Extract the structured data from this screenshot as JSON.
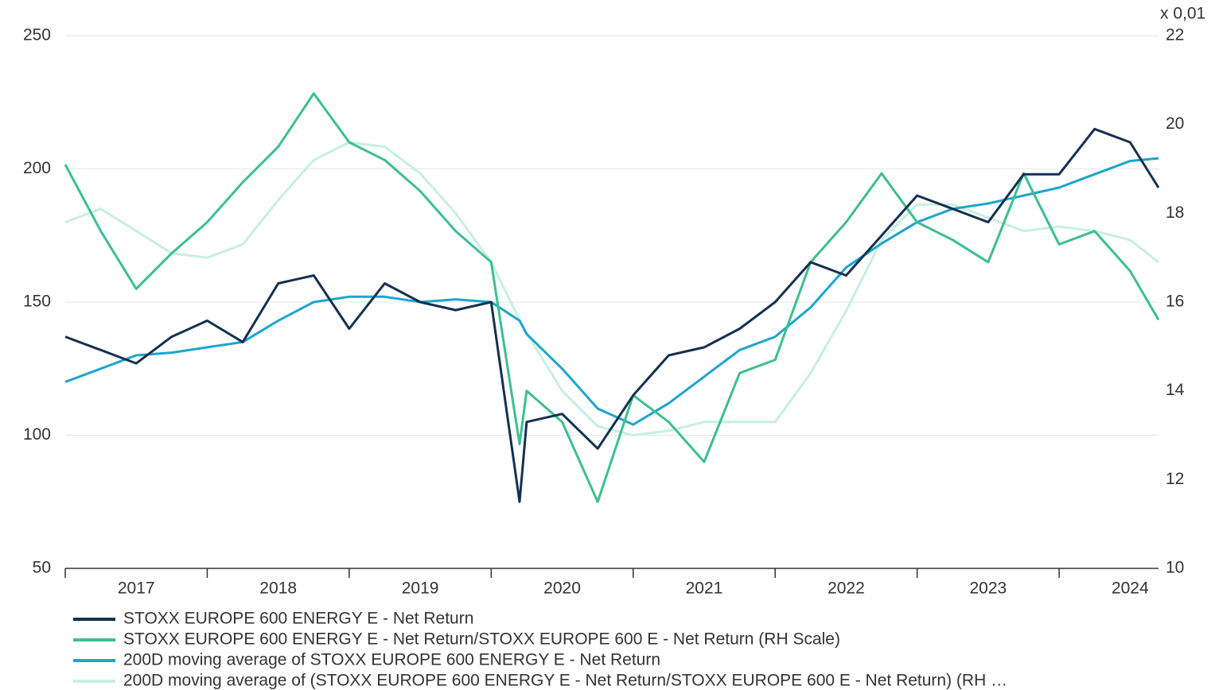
{
  "chart_data": {
    "type": "line",
    "right_axis_unit": "x 0,01",
    "x": [
      2017,
      2017.25,
      2017.5,
      2017.75,
      2018,
      2018.25,
      2018.5,
      2018.75,
      2019,
      2019.25,
      2019.5,
      2019.75,
      2020,
      2020.2,
      2020.25,
      2020.5,
      2020.75,
      2021,
      2021.25,
      2021.5,
      2021.75,
      2022,
      2022.25,
      2022.5,
      2022.75,
      2023,
      2023.25,
      2023.5,
      2023.75,
      2024,
      2024.25,
      2024.5,
      2024.7
    ],
    "xlim": [
      2017,
      2024.7
    ],
    "xticks": [
      {
        "value": 2017,
        "label": "2017"
      },
      {
        "value": 2018,
        "label": "2018"
      },
      {
        "value": 2019,
        "label": "2019"
      },
      {
        "value": 2020,
        "label": "2020"
      },
      {
        "value": 2021,
        "label": "2021"
      },
      {
        "value": 2022,
        "label": "2022"
      },
      {
        "value": 2023,
        "label": "2023"
      },
      {
        "value": 2024,
        "label": "2024"
      }
    ],
    "ylim": [
      50,
      250
    ],
    "yticks": [
      50,
      100,
      150,
      200,
      250
    ],
    "y2lim": [
      10,
      22
    ],
    "y2ticks": [
      10,
      12,
      14,
      16,
      18,
      20,
      22
    ],
    "grid": true,
    "series": [
      {
        "name": "STOXX EUROPE 600 ENERGY E - Net Return",
        "color": "#14304f",
        "values": [
          137,
          132,
          127,
          137,
          143,
          135,
          157,
          160,
          140,
          157,
          150,
          147,
          150,
          75,
          105,
          108,
          95,
          115,
          130,
          133,
          140,
          150,
          165,
          160,
          175,
          190,
          185,
          180,
          198,
          198,
          215,
          210,
          193
        ]
      },
      {
        "name": "STOXX EUROPE 600 ENERGY E - Net Return/STOXX EUROPE 600 E - Net Return (RH Scale)",
        "color": "#3cbf8e",
        "axis": "y2",
        "values": [
          19.1,
          17.6,
          16.3,
          17.1,
          17.8,
          18.7,
          19.5,
          20.7,
          19.6,
          19.2,
          18.5,
          17.6,
          16.9,
          12.8,
          14.0,
          13.3,
          11.5,
          13.9,
          13.3,
          12.4,
          14.4,
          14.7,
          16.9,
          17.8,
          18.9,
          17.8,
          17.4,
          16.9,
          18.9,
          17.3,
          17.6,
          16.7,
          15.6
        ]
      },
      {
        "name": "200D moving average of STOXX EUROPE 600 ENERGY E - Net Return",
        "color": "#1ea4cf",
        "values": [
          120,
          125,
          130,
          131,
          133,
          135,
          143,
          150,
          152,
          152,
          150,
          151,
          150,
          143,
          138,
          125,
          110,
          104,
          112,
          122,
          132,
          137,
          148,
          163,
          172,
          180,
          185,
          187,
          190,
          193,
          198,
          203,
          204
        ]
      },
      {
        "name": "200D moving average of (STOXX EUROPE 600 ENERGY E - Net Return/STOXX EUROPE 600 E - Net Return) (RH …",
        "color": "#c8efe0",
        "axis": "y2",
        "values": [
          17.8,
          18.1,
          17.6,
          17.1,
          17.0,
          17.3,
          18.3,
          19.2,
          19.6,
          19.5,
          18.9,
          18.0,
          16.9,
          15.6,
          15.3,
          14.0,
          13.2,
          13.0,
          13.1,
          13.3,
          13.3,
          13.3,
          14.4,
          15.8,
          17.4,
          18.2,
          18.2,
          17.9,
          17.6,
          17.7,
          17.6,
          17.4,
          16.9
        ]
      }
    ]
  }
}
